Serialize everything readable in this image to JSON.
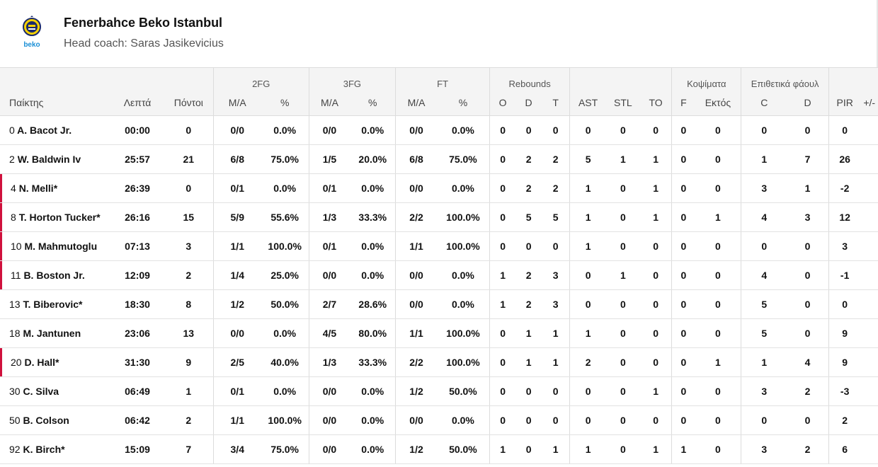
{
  "team": {
    "name": "Fenerbahce Beko Istanbul",
    "coach": "Head coach: Saras Jasikevicius",
    "logo_icon": "fenerbahce-beko-logo",
    "logo_text": "beko",
    "accent": "#d0113d"
  },
  "headers": {
    "groups": {
      "fg2": "2FG",
      "fg3": "3FG",
      "ft": "FT",
      "rebounds": "Rebounds",
      "blocks": "Κοψίματα",
      "fouls": "Επιθετικά φάουλ"
    },
    "columns": [
      "Παίκτης",
      "Λεπτά",
      "Πόντοι",
      "M/A",
      "%",
      "M/A",
      "%",
      "M/A",
      "%",
      "O",
      "D",
      "T",
      "AST",
      "STL",
      "TO",
      "F",
      "Εκτός",
      "C",
      "D",
      "PIR",
      "+/-"
    ]
  },
  "players": [
    {
      "num": "0",
      "name": "A. Bacot Jr.",
      "starter": false,
      "cells": [
        "00:00",
        "0",
        "0/0",
        "0.0%",
        "0/0",
        "0.0%",
        "0/0",
        "0.0%",
        "0",
        "0",
        "0",
        "0",
        "0",
        "0",
        "0",
        "0",
        "0",
        "0",
        "0",
        ""
      ]
    },
    {
      "num": "2",
      "name": "W. Baldwin Iv",
      "starter": false,
      "cells": [
        "25:57",
        "21",
        "6/8",
        "75.0%",
        "1/5",
        "20.0%",
        "6/8",
        "75.0%",
        "0",
        "2",
        "2",
        "5",
        "1",
        "1",
        "0",
        "0",
        "1",
        "7",
        "26",
        ""
      ]
    },
    {
      "num": "4",
      "name": "N. Melli*",
      "starter": true,
      "cells": [
        "26:39",
        "0",
        "0/1",
        "0.0%",
        "0/1",
        "0.0%",
        "0/0",
        "0.0%",
        "0",
        "2",
        "2",
        "1",
        "0",
        "1",
        "0",
        "0",
        "3",
        "1",
        "-2",
        ""
      ]
    },
    {
      "num": "8",
      "name": "T. Horton Tucker*",
      "starter": true,
      "cells": [
        "26:16",
        "15",
        "5/9",
        "55.6%",
        "1/3",
        "33.3%",
        "2/2",
        "100.0%",
        "0",
        "5",
        "5",
        "1",
        "0",
        "1",
        "0",
        "1",
        "4",
        "3",
        "12",
        ""
      ]
    },
    {
      "num": "10",
      "name": "M. Mahmutoglu",
      "starter": true,
      "cells": [
        "07:13",
        "3",
        "1/1",
        "100.0%",
        "0/1",
        "0.0%",
        "1/1",
        "100.0%",
        "0",
        "0",
        "0",
        "1",
        "0",
        "0",
        "0",
        "0",
        "0",
        "0",
        "3",
        ""
      ]
    },
    {
      "num": "11",
      "name": "B. Boston Jr.",
      "starter": true,
      "cells": [
        "12:09",
        "2",
        "1/4",
        "25.0%",
        "0/0",
        "0.0%",
        "0/0",
        "0.0%",
        "1",
        "2",
        "3",
        "0",
        "1",
        "0",
        "0",
        "0",
        "4",
        "0",
        "-1",
        ""
      ]
    },
    {
      "num": "13",
      "name": "T. Biberovic*",
      "starter": false,
      "cells": [
        "18:30",
        "8",
        "1/2",
        "50.0%",
        "2/7",
        "28.6%",
        "0/0",
        "0.0%",
        "1",
        "2",
        "3",
        "0",
        "0",
        "0",
        "0",
        "0",
        "5",
        "0",
        "0",
        ""
      ]
    },
    {
      "num": "18",
      "name": "M. Jantunen",
      "starter": false,
      "cells": [
        "23:06",
        "13",
        "0/0",
        "0.0%",
        "4/5",
        "80.0%",
        "1/1",
        "100.0%",
        "0",
        "1",
        "1",
        "1",
        "0",
        "0",
        "0",
        "0",
        "5",
        "0",
        "9",
        ""
      ]
    },
    {
      "num": "20",
      "name": "D. Hall*",
      "starter": true,
      "cells": [
        "31:30",
        "9",
        "2/5",
        "40.0%",
        "1/3",
        "33.3%",
        "2/2",
        "100.0%",
        "0",
        "1",
        "1",
        "2",
        "0",
        "0",
        "0",
        "1",
        "1",
        "4",
        "9",
        ""
      ]
    },
    {
      "num": "30",
      "name": "C. Silva",
      "starter": false,
      "cells": [
        "06:49",
        "1",
        "0/1",
        "0.0%",
        "0/0",
        "0.0%",
        "1/2",
        "50.0%",
        "0",
        "0",
        "0",
        "0",
        "0",
        "1",
        "0",
        "0",
        "3",
        "2",
        "-3",
        ""
      ]
    },
    {
      "num": "50",
      "name": "B. Colson",
      "starter": false,
      "cells": [
        "06:42",
        "2",
        "1/1",
        "100.0%",
        "0/0",
        "0.0%",
        "0/0",
        "0.0%",
        "0",
        "0",
        "0",
        "0",
        "0",
        "0",
        "0",
        "0",
        "0",
        "0",
        "2",
        ""
      ]
    },
    {
      "num": "92",
      "name": "K. Birch*",
      "starter": false,
      "cells": [
        "15:09",
        "7",
        "3/4",
        "75.0%",
        "0/0",
        "0.0%",
        "1/2",
        "50.0%",
        "1",
        "0",
        "1",
        "1",
        "0",
        "1",
        "1",
        "0",
        "3",
        "2",
        "6",
        ""
      ]
    }
  ]
}
